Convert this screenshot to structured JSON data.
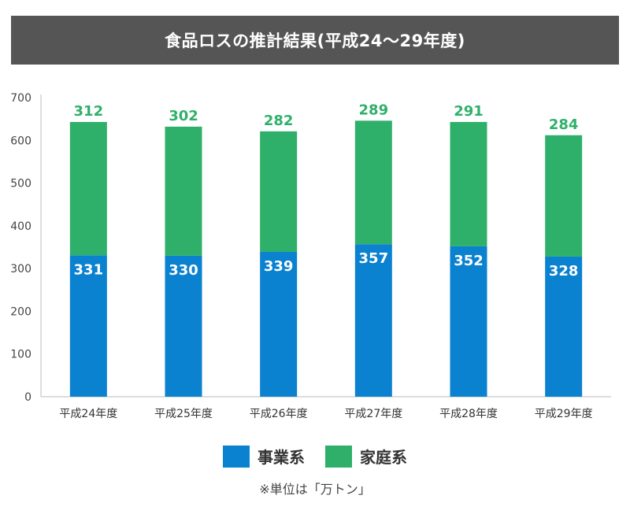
{
  "title": "食品ロスの推計結果(平成24〜29年度)",
  "note": "※単位は「万トン」",
  "colors": {
    "business": "#0a82d0",
    "household": "#2fb06a",
    "axis": "#bbbbbb",
    "title_bg": "#555555"
  },
  "chart_data": {
    "type": "bar",
    "stacked": true,
    "categories": [
      "平成24年度",
      "平成25年度",
      "平成26年度",
      "平成27年度",
      "平成28年度",
      "平成29年度"
    ],
    "series": [
      {
        "name": "事業系",
        "values": [
          331,
          330,
          339,
          357,
          352,
          328
        ]
      },
      {
        "name": "家庭系",
        "values": [
          312,
          302,
          282,
          289,
          291,
          284
        ]
      }
    ],
    "ylim": [
      0,
      700
    ],
    "yticks": [
      0,
      100,
      200,
      300,
      400,
      500,
      600,
      700
    ],
    "grid": false,
    "legend_position": "bottom"
  }
}
